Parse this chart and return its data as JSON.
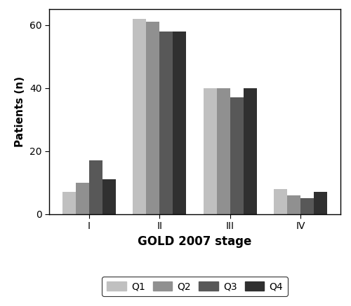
{
  "categories": [
    "I",
    "II",
    "III",
    "IV"
  ],
  "series": {
    "Q1": [
      7,
      62,
      40,
      8
    ],
    "Q2": [
      10,
      61,
      40,
      6
    ],
    "Q3": [
      17,
      58,
      37,
      5
    ],
    "Q4": [
      11,
      58,
      40,
      7
    ]
  },
  "colors": {
    "Q1": "#c0c0c0",
    "Q2": "#909090",
    "Q3": "#585858",
    "Q4": "#303030"
  },
  "xlabel": "GOLD 2007 stage",
  "ylabel": "Patients (n)",
  "ylim": [
    0,
    65
  ],
  "yticks": [
    0,
    20,
    40,
    60
  ],
  "bar_width": 0.19,
  "legend_labels": [
    "Q1",
    "Q2",
    "Q3",
    "Q4"
  ],
  "background_color": "#ffffff",
  "xlabel_fontsize": 12,
  "ylabel_fontsize": 11,
  "tick_fontsize": 10,
  "legend_fontsize": 10
}
